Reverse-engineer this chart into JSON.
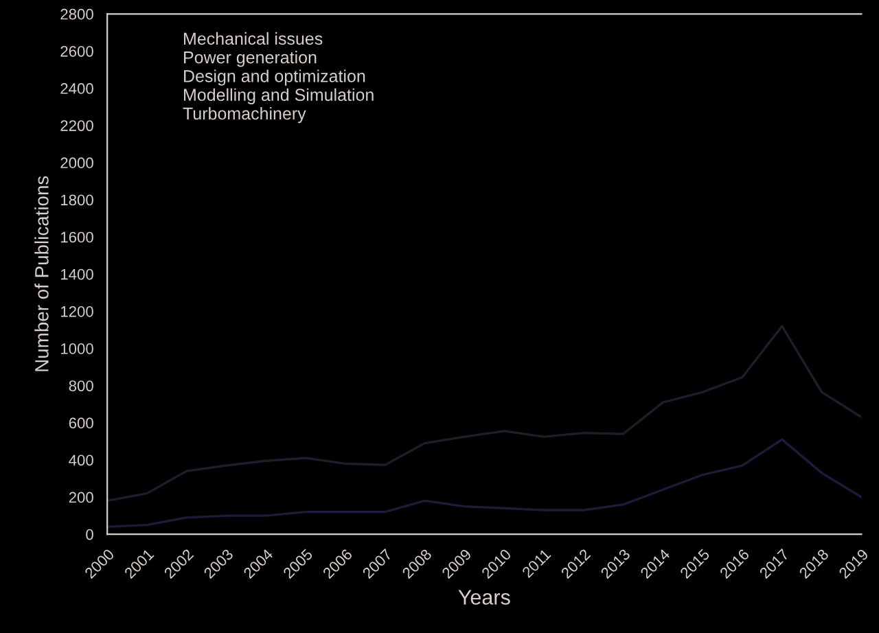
{
  "chart_data": {
    "type": "line",
    "xlabel": "Years",
    "ylabel": "Number of Publications",
    "categories": [
      "2000",
      "2001",
      "2002",
      "2003",
      "2004",
      "2005",
      "2006",
      "2007",
      "2008",
      "2009",
      "2010",
      "2011",
      "2012",
      "2013",
      "2014",
      "2015",
      "2016",
      "2017",
      "2018",
      "2019"
    ],
    "series": [
      {
        "color": "#1c1c3a",
        "values": [
          40,
          50,
          90,
          100,
          100,
          120,
          120,
          120,
          180,
          150,
          140,
          130,
          130,
          160,
          240,
          320,
          370,
          510,
          330,
          200
        ]
      },
      {
        "color": "#1e1e2a",
        "values": [
          180,
          220,
          340,
          370,
          395,
          410,
          380,
          373,
          490,
          525,
          555,
          525,
          545,
          540,
          710,
          765,
          845,
          1120,
          765,
          630
        ]
      }
    ],
    "annotations": [
      "Mechanical issues",
      "Power generation",
      "Design and optimization",
      "Modelling and Simulation",
      "Turbomachinery"
    ],
    "ylim": [
      0,
      2800
    ],
    "yticks": [
      0,
      200,
      400,
      600,
      800,
      1000,
      1200,
      1400,
      1600,
      1800,
      2000,
      2200,
      2400,
      2600,
      2800
    ],
    "grid": false,
    "legend": false,
    "marker": "none",
    "line_style": "solid"
  }
}
